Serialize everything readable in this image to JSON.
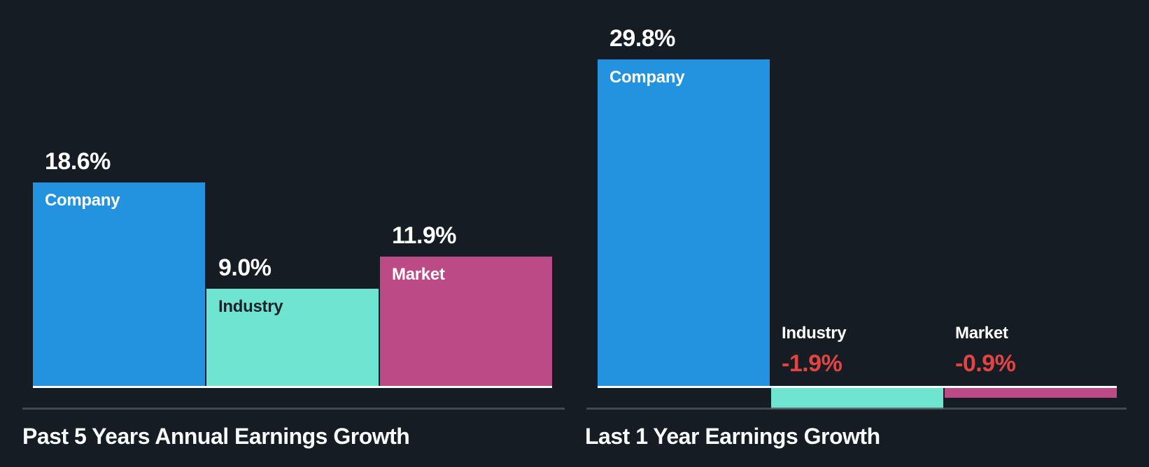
{
  "palette": {
    "background": "#161c24",
    "company_bar": "#2493df",
    "industry_bar": "#6fe5d1",
    "market_bar": "#bc4a87",
    "positive_value_text": "#ffffff",
    "negative_value_text": "#e24444",
    "light_label_text": "#ffffff",
    "dark_label_text": "#1b222b",
    "baseline": "#ffffff",
    "divider": "#4b535e",
    "title_text": "#f8fafb"
  },
  "chart_data": [
    {
      "type": "bar",
      "title": "Past 5 Years Annual Earnings Growth",
      "unit": "%",
      "categories": [
        "Company",
        "Industry",
        "Market"
      ],
      "values": [
        18.6,
        9.0,
        11.9
      ],
      "value_labels": [
        "18.6%",
        "9.0%",
        "11.9%"
      ],
      "bar_color_keys": [
        "company_bar",
        "industry_bar",
        "market_bar"
      ],
      "category_label_styles": [
        "light",
        "dark",
        "light"
      ],
      "baseline_value": 0,
      "grid": false,
      "legend": false,
      "axes_hidden": true
    },
    {
      "type": "bar",
      "title": "Last 1 Year Earnings Growth",
      "unit": "%",
      "categories": [
        "Company",
        "Industry",
        "Market"
      ],
      "values": [
        29.8,
        -1.9,
        -0.9
      ],
      "value_labels": [
        "29.8%",
        "-1.9%",
        "-0.9%"
      ],
      "bar_color_keys": [
        "company_bar",
        "industry_bar",
        "market_bar"
      ],
      "category_label_styles": [
        "light",
        "light",
        "light"
      ],
      "baseline_value": 0,
      "grid": false,
      "legend": false,
      "axes_hidden": true
    }
  ]
}
